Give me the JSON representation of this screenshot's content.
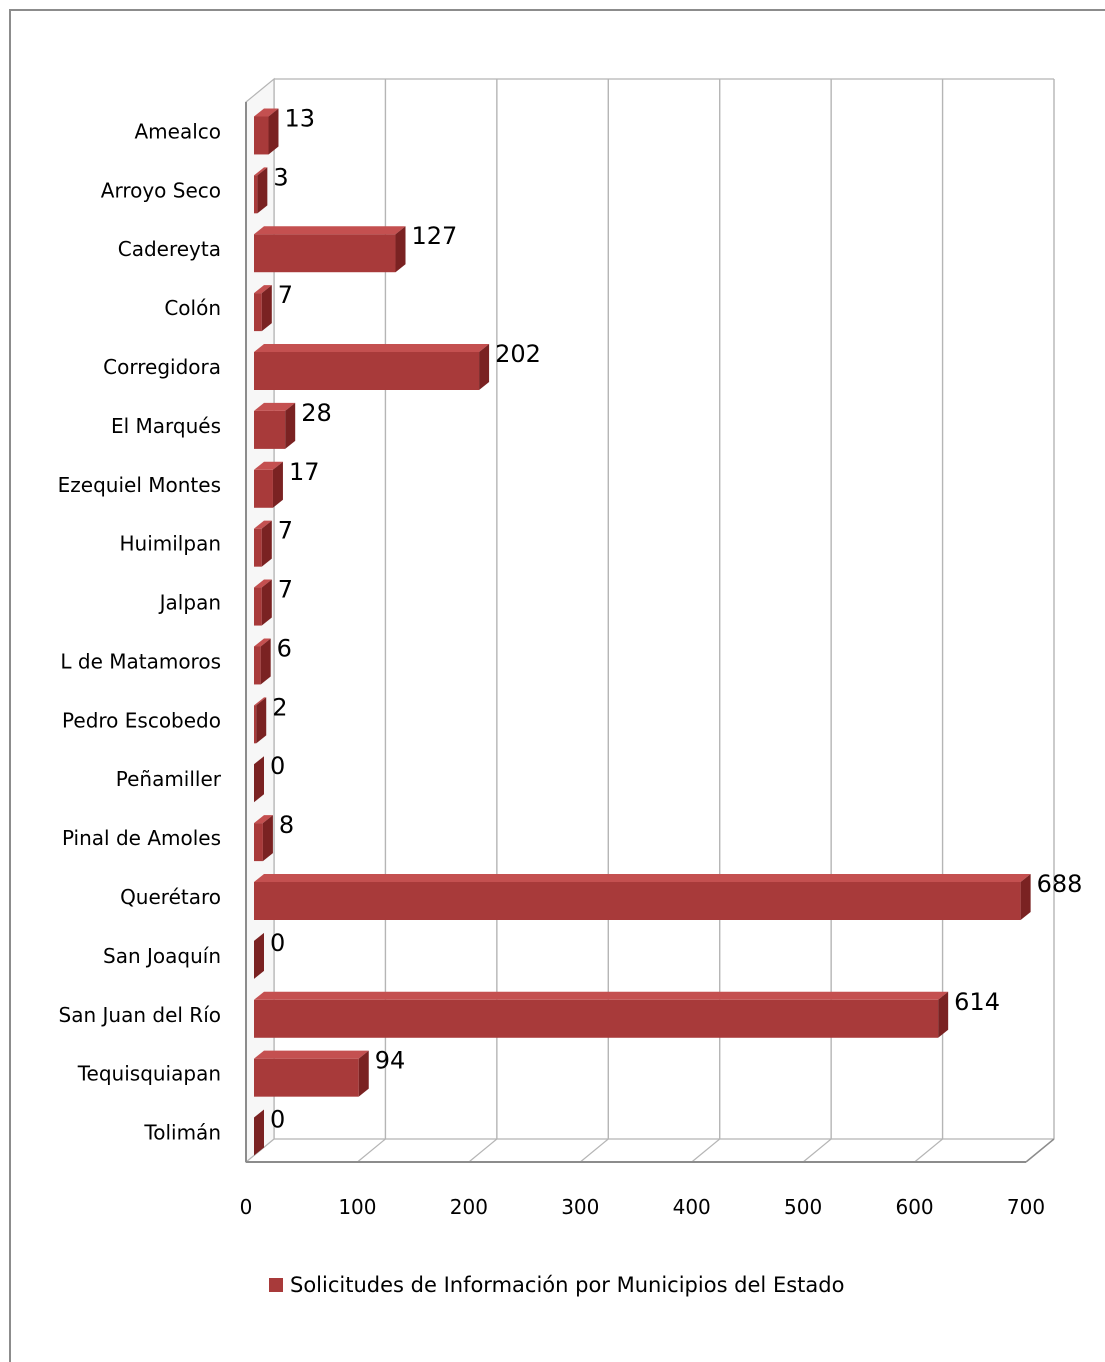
{
  "chart_data": {
    "type": "bar",
    "orientation": "horizontal",
    "style": "3d",
    "categories": [
      "Amealco",
      "Arroyo Seco",
      "Cadereyta",
      "Colón",
      "Corregidora",
      "El Marqués",
      "Ezequiel Montes",
      "Huimilpan",
      "Jalpan",
      "L de Matamoros",
      "Pedro Escobedo",
      "Peñamiller",
      "Pinal de Amoles",
      "Querétaro",
      "San Joaquín",
      "San Juan del Río",
      "Tequisquiapan",
      "Tolimán"
    ],
    "series": [
      {
        "name": "Solicitudes de Información por Municipios del Estado",
        "values": [
          13,
          3,
          127,
          7,
          202,
          28,
          17,
          7,
          7,
          6,
          2,
          0,
          8,
          688,
          0,
          614,
          94,
          0
        ]
      }
    ],
    "xlim": [
      0,
      700
    ],
    "xticks": [
      "0",
      "100",
      "200",
      "300",
      "400",
      "500",
      "600",
      "700"
    ],
    "grid": true,
    "legend": "bottom",
    "colors": {
      "bar_front": "#a83a3a",
      "bar_top": "#c45050",
      "bar_side": "#7a2222",
      "grid": "#b5b5b5"
    }
  }
}
